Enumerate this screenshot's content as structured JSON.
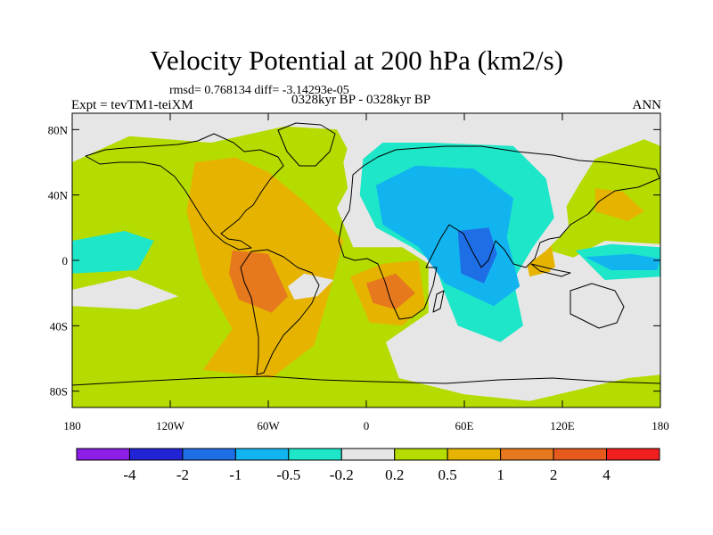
{
  "chart_data": {
    "type": "heatmap",
    "title": "Velocity Potential at 200 hPa (km2/s)",
    "stats": "rmsd= 0.768134  diff= -3.14293e-05",
    "experiment": "Expt = tevTM1-teiXM",
    "period": "0328kyr BP - 0328kyr BP",
    "season": "ANN",
    "x_ticks": [
      {
        "value": -180,
        "label": "180"
      },
      {
        "value": -120,
        "label": "120W"
      },
      {
        "value": -60,
        "label": "60W"
      },
      {
        "value": 0,
        "label": "0"
      },
      {
        "value": 60,
        "label": "60E"
      },
      {
        "value": 120,
        "label": "120E"
      },
      {
        "value": 180,
        "label": "180"
      }
    ],
    "y_ticks": [
      {
        "value": 80,
        "label": "80N"
      },
      {
        "value": 40,
        "label": "40N"
      },
      {
        "value": 0,
        "label": "0"
      },
      {
        "value": -40,
        "label": "40S"
      },
      {
        "value": -80,
        "label": "80S"
      }
    ],
    "xlim": [
      -180,
      180
    ],
    "ylim": [
      -90,
      90
    ],
    "colorbar": {
      "colors": [
        "#8c1ee6",
        "#2323d6",
        "#1e6ee6",
        "#12b4f0",
        "#1ee6c8",
        "#e6e6e6",
        "#b4dc00",
        "#e6b400",
        "#e6781e",
        "#e65a1e",
        "#f01e1e"
      ],
      "labels": [
        "-4",
        "-2",
        "-1",
        "-0.5",
        "-0.2",
        "0.2",
        "0.5",
        "1",
        "2",
        "4"
      ]
    },
    "regions": [
      {
        "level": 6,
        "lon_lat": [
          [
            -180,
            60
          ],
          [
            -145,
            76
          ],
          [
            -95,
            72
          ],
          [
            -50,
            82
          ],
          [
            -18,
            80
          ],
          [
            -5,
            56
          ],
          [
            -18,
            32
          ],
          [
            -8,
            8
          ],
          [
            22,
            8
          ],
          [
            38,
            -2
          ],
          [
            38,
            -32
          ],
          [
            12,
            -50
          ],
          [
            20,
            -72
          ],
          [
            60,
            -82
          ],
          [
            100,
            -86
          ],
          [
            160,
            -72
          ],
          [
            180,
            -70
          ],
          [
            180,
            -90
          ],
          [
            -180,
            -90
          ]
        ]
      },
      {
        "level": 6,
        "lon_lat": [
          [
            130,
            46
          ],
          [
            140,
            62
          ],
          [
            170,
            74
          ],
          [
            180,
            70
          ],
          [
            180,
            4
          ],
          [
            140,
            -2
          ],
          [
            112,
            6
          ],
          [
            116,
            22
          ]
        ]
      },
      {
        "level": 7,
        "lon_lat": [
          [
            -105,
            60
          ],
          [
            -80,
            63
          ],
          [
            -60,
            54
          ],
          [
            -38,
            36
          ],
          [
            -14,
            12
          ],
          [
            -22,
            -18
          ],
          [
            -32,
            -52
          ],
          [
            -58,
            -72
          ],
          [
            -100,
            -67
          ],
          [
            -82,
            -42
          ],
          [
            -100,
            -10
          ],
          [
            -110,
            30
          ]
        ]
      },
      {
        "level": 7,
        "lon_lat": [
          [
            -10,
            -10
          ],
          [
            10,
            -2
          ],
          [
            32,
            0
          ],
          [
            36,
            -28
          ],
          [
            22,
            -40
          ],
          [
            2,
            -38
          ]
        ]
      },
      {
        "level": 7,
        "lon_lat": [
          [
            140,
            44
          ],
          [
            157,
            42
          ],
          [
            170,
            30
          ],
          [
            160,
            24
          ],
          [
            140,
            30
          ]
        ]
      },
      {
        "level": 7,
        "lon_lat": [
          [
            96,
            8
          ],
          [
            112,
            16
          ],
          [
            116,
            -6
          ],
          [
            100,
            -10
          ]
        ]
      },
      {
        "level": 8,
        "lon_lat": [
          [
            -82,
            6
          ],
          [
            -60,
            4
          ],
          [
            -48,
            -22
          ],
          [
            -58,
            -32
          ],
          [
            -78,
            -24
          ],
          [
            -84,
            -8
          ]
        ]
      },
      {
        "level": 8,
        "lon_lat": [
          [
            0,
            -14
          ],
          [
            18,
            -8
          ],
          [
            30,
            -20
          ],
          [
            18,
            -30
          ],
          [
            4,
            -26
          ]
        ]
      },
      {
        "level": 5,
        "lon_lat": [
          [
            -180,
            -18
          ],
          [
            -145,
            -10
          ],
          [
            -115,
            -22
          ],
          [
            -140,
            -30
          ],
          [
            -180,
            -28
          ]
        ]
      },
      {
        "level": 5,
        "lon_lat": [
          [
            -48,
            -16
          ],
          [
            -38,
            -8
          ],
          [
            -20,
            -12
          ],
          [
            -30,
            -22
          ],
          [
            -44,
            -24
          ]
        ]
      },
      {
        "level": 5,
        "lon_lat": [
          [
            -6,
            88
          ],
          [
            -14,
            60
          ],
          [
            -10,
            36
          ],
          [
            -4,
            22
          ],
          [
            12,
            10
          ],
          [
            42,
            6
          ],
          [
            42,
            -28
          ],
          [
            54,
            -46
          ],
          [
            60,
            -58
          ],
          [
            116,
            -64
          ],
          [
            102,
            -34
          ],
          [
            92,
            -8
          ],
          [
            110,
            6
          ],
          [
            124,
            20
          ],
          [
            120,
            56
          ],
          [
            100,
            88
          ]
        ]
      },
      {
        "level": 5,
        "lon_lat": [
          [
            112,
            -6
          ],
          [
            142,
            -22
          ],
          [
            180,
            -20
          ],
          [
            180,
            10
          ],
          [
            146,
            12
          ]
        ]
      },
      {
        "level": 4,
        "lon_lat": [
          [
            -180,
            12
          ],
          [
            -148,
            18
          ],
          [
            -130,
            12
          ],
          [
            -140,
            -6
          ],
          [
            -180,
            -8
          ]
        ]
      },
      {
        "level": 4,
        "lon_lat": [
          [
            -2,
            62
          ],
          [
            -4,
            40
          ],
          [
            6,
            20
          ],
          [
            28,
            8
          ],
          [
            42,
            -2
          ],
          [
            48,
            -20
          ],
          [
            56,
            -40
          ],
          [
            82,
            -50
          ],
          [
            96,
            -40
          ],
          [
            90,
            -12
          ],
          [
            102,
            8
          ],
          [
            115,
            26
          ],
          [
            110,
            50
          ],
          [
            90,
            70
          ],
          [
            40,
            72
          ],
          [
            10,
            72
          ]
        ]
      },
      {
        "level": 4,
        "lon_lat": [
          [
            128,
            6
          ],
          [
            150,
            10
          ],
          [
            180,
            8
          ],
          [
            180,
            -10
          ],
          [
            146,
            -12
          ]
        ]
      },
      {
        "level": 3,
        "lon_lat": [
          [
            6,
            46
          ],
          [
            10,
            22
          ],
          [
            32,
            8
          ],
          [
            48,
            -14
          ],
          [
            78,
            -28
          ],
          [
            94,
            -16
          ],
          [
            86,
            14
          ],
          [
            90,
            38
          ],
          [
            66,
            56
          ],
          [
            30,
            58
          ]
        ]
      },
      {
        "level": 3,
        "lon_lat": [
          [
            134,
            2
          ],
          [
            162,
            4
          ],
          [
            180,
            1
          ],
          [
            178,
            -6
          ],
          [
            150,
            -6
          ]
        ]
      },
      {
        "level": 2,
        "lon_lat": [
          [
            56,
            18
          ],
          [
            75,
            20
          ],
          [
            80,
            4
          ],
          [
            72,
            -14
          ],
          [
            58,
            -8
          ]
        ]
      }
    ]
  }
}
